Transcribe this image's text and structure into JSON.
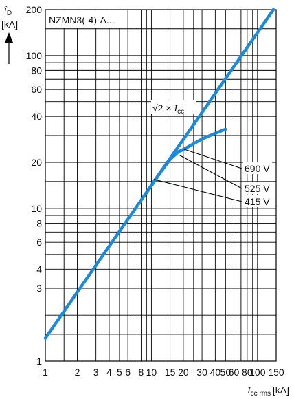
{
  "chart_data": {
    "type": "line",
    "title": "NZMN3(-4)-A...",
    "x_scale": "log",
    "y_scale": "log",
    "xlim": [
      1,
      150
    ],
    "ylim": [
      1,
      200
    ],
    "grid": true,
    "xlabel": {
      "symbol": "I",
      "subscript": "cc rms",
      "unit": "[kA]"
    },
    "ylabel": {
      "symbol": "î",
      "subscript": "D",
      "unit": "[kA]"
    },
    "x_ticks": [
      {
        "value": 1,
        "label": "1"
      },
      {
        "value": 2,
        "label": "2"
      },
      {
        "value": 3,
        "label": "3"
      },
      {
        "value": 4,
        "label": "4"
      },
      {
        "value": 5,
        "label": "5"
      },
      {
        "value": 6,
        "label": "6"
      },
      {
        "value": 8,
        "label": "8"
      },
      {
        "value": 10,
        "label": "10"
      },
      {
        "value": 15,
        "label": "15"
      },
      {
        "value": 20,
        "label": "20"
      },
      {
        "value": 30,
        "label": "30"
      },
      {
        "value": 40,
        "label": "40"
      },
      {
        "value": 50,
        "label": "50"
      },
      {
        "value": 60,
        "label": "60"
      },
      {
        "value": 80,
        "label": "80"
      },
      {
        "value": 100,
        "label": "100"
      },
      {
        "value": 150,
        "label": "150"
      }
    ],
    "y_ticks": [
      {
        "value": 1,
        "label": "1"
      },
      {
        "value": 3,
        "label": "3"
      },
      {
        "value": 4,
        "label": "4"
      },
      {
        "value": 6,
        "label": "6"
      },
      {
        "value": 8,
        "label": "8"
      },
      {
        "value": 10,
        "label": "10"
      },
      {
        "value": 20,
        "label": "20"
      },
      {
        "value": 40,
        "label": "40"
      },
      {
        "value": 60,
        "label": "60"
      },
      {
        "value": 80,
        "label": "80"
      },
      {
        "value": 100,
        "label": "100"
      },
      {
        "value": 200,
        "label": "200"
      }
    ],
    "x_grid": [
      1,
      1.5,
      2,
      3,
      4,
      5,
      6,
      7,
      8,
      9,
      10,
      15,
      20,
      25,
      30,
      40,
      50,
      60,
      70,
      80,
      90,
      100,
      150
    ],
    "y_grid": [
      1,
      1.5,
      2,
      3,
      4,
      5,
      6,
      7,
      8,
      9,
      10,
      15,
      20,
      30,
      40,
      50,
      60,
      70,
      80,
      90,
      100,
      150,
      200
    ],
    "series": [
      {
        "name": "√2 × Icc",
        "x": [
          1,
          141.4
        ],
        "y": [
          1.414,
          200
        ]
      },
      {
        "name": "690 V",
        "x": [
          8.5,
          10,
          12,
          15,
          18,
          20,
          25,
          30,
          40,
          50
        ],
        "y": [
          12.0,
          14.1,
          17.0,
          21.0,
          23.5,
          24.3,
          26.5,
          28.5,
          31.0,
          33.0
        ]
      },
      {
        "name": "525 V",
        "x": [
          8.5,
          10,
          12,
          15,
          18,
          20
        ],
        "y": [
          12.0,
          14.1,
          17.0,
          21.0,
          23.5,
          24.3
        ]
      },
      {
        "name": "415 V",
        "x": [
          8.5,
          10,
          12,
          15
        ],
        "y": [
          12.0,
          14.1,
          17.0,
          21.0
        ]
      }
    ],
    "annotations": [
      {
        "label": "690 V",
        "x": 20,
        "y": 24.5
      },
      {
        "label": "525 V",
        "x": 18,
        "y": 22.5
      },
      {
        "label": "415 V",
        "x": 10.5,
        "y": 15.5
      }
    ],
    "line_color": "#1c8ad9",
    "curve_label": {
      "radical": "√2",
      "operator": "×",
      "symbol": "I",
      "subscript": "cc"
    }
  }
}
